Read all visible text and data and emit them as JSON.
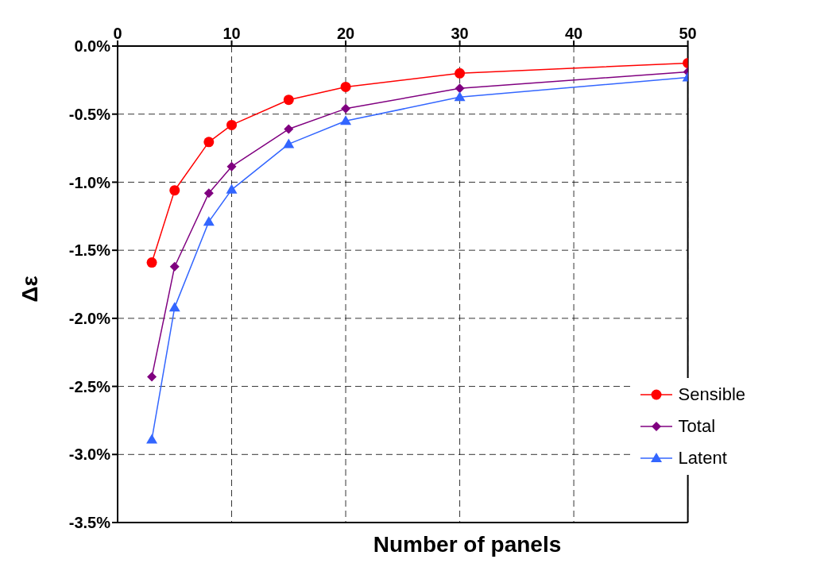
{
  "chart_data": {
    "type": "line",
    "xlabel": "Number of panels",
    "ylabel": "Δε",
    "x": [
      3,
      5,
      8,
      10,
      15,
      20,
      30,
      50
    ],
    "series": [
      {
        "name": "Sensible",
        "color": "#ff0000",
        "marker": "circle",
        "values": [
          -1.59,
          -1.06,
          -0.705,
          -0.58,
          -0.395,
          -0.3,
          -0.2,
          -0.125
        ]
      },
      {
        "name": "Total",
        "color": "#800080",
        "marker": "diamond",
        "values": [
          -2.43,
          -1.62,
          -1.08,
          -0.885,
          -0.61,
          -0.46,
          -0.31,
          -0.19
        ]
      },
      {
        "name": "Latent",
        "color": "#3366ff",
        "marker": "triangle",
        "values": [
          -2.89,
          -1.92,
          -1.29,
          -1.055,
          -0.72,
          -0.55,
          -0.375,
          -0.23
        ]
      }
    ],
    "xlim": [
      0,
      50
    ],
    "xticks": [
      0,
      10,
      20,
      30,
      40,
      50
    ],
    "ylim": [
      -3.5,
      0
    ],
    "yticks": [
      {
        "value": -3.5,
        "label": "-3.5%"
      },
      {
        "value": -3.0,
        "label": "-3.0%"
      },
      {
        "value": -2.5,
        "label": "-2.5%"
      },
      {
        "value": -2.0,
        "label": "-2.0%"
      },
      {
        "value": -1.5,
        "label": "-1.5%"
      },
      {
        "value": -1.0,
        "label": "-1.0%"
      },
      {
        "value": -0.5,
        "label": "-0.5%"
      },
      {
        "value": 0,
        "label": "0.0%"
      }
    ],
    "grid": true,
    "line_style": "solid",
    "legend": "bottom right"
  }
}
